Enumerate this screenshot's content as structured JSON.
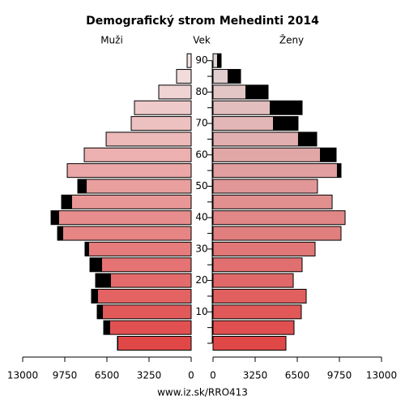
{
  "chart_data": {
    "type": "pyramid",
    "title": "Demografický strom Mehedinti 2014",
    "y_label": "Vek",
    "categories": [
      null,
      null,
      10,
      null,
      20,
      null,
      30,
      null,
      40,
      null,
      50,
      null,
      60,
      null,
      70,
      null,
      80,
      null,
      90
    ],
    "series": [
      {
        "name": "Muži",
        "side": "left",
        "color": "#e04848",
        "color_top": "#f2e4e4",
        "values": [
          5690,
          6750,
          7250,
          7690,
          7375,
          7810,
          8190,
          10310,
          10810,
          10000,
          8750,
          9560,
          8250,
          6560,
          4625,
          4375,
          2500,
          1125,
          310
        ]
      },
      {
        "name": "Ženy",
        "side": "right",
        "color": "#e04848",
        "color_top": "#e2d6d6",
        "values": [
          5625,
          6250,
          6810,
          7190,
          6190,
          6875,
          7875,
          9875,
          10190,
          9190,
          8060,
          9875,
          9500,
          8000,
          6560,
          6875,
          4250,
          2125,
          625
        ]
      }
    ],
    "surplus_color": "#000000",
    "xlim": [
      0,
      13000
    ],
    "xticks": [
      0,
      3250,
      6500,
      9750,
      13000
    ],
    "source": "www.iz.sk/RRO413"
  }
}
